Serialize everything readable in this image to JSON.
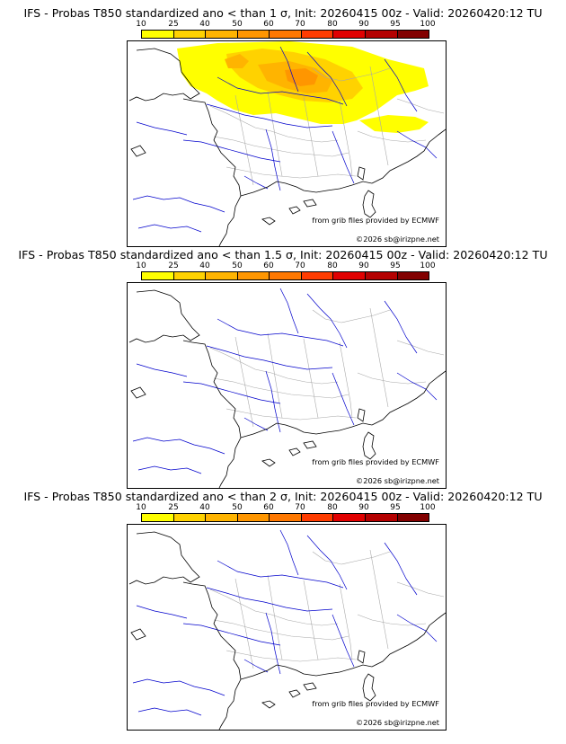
{
  "panels": [
    {
      "title": "IFS - Probas T850  standardized ano < than 1 σ, Init: 20260415 00z - Valid: 20260420:12 TU",
      "has_shading": true
    },
    {
      "title": "IFS - Probas T850  standardized ano < than 1.5 σ, Init: 20260415 00z - Valid: 20260420:12 TU",
      "has_shading": false
    },
    {
      "title": "IFS - Probas T850  standardized ano < than 2 σ, Init: 20260415 00z - Valid: 20260420:12 TU",
      "has_shading": false
    }
  ],
  "colorbar": {
    "ticks": [
      "10",
      "25",
      "40",
      "50",
      "60",
      "70",
      "80",
      "90",
      "95",
      "100"
    ],
    "colors": [
      "#ffff00",
      "#ffd200",
      "#ffb400",
      "#ff9600",
      "#ff7800",
      "#ff3c00",
      "#e10000",
      "#b40000",
      "#820000"
    ]
  },
  "credits": {
    "source": "from grib files provided by ECMWF",
    "copyright": "©2026 sb@irizpne.net"
  },
  "map_colors": {
    "coast": "#000000",
    "rivers": "#0000cc",
    "borders": "#a8a8a8"
  }
}
